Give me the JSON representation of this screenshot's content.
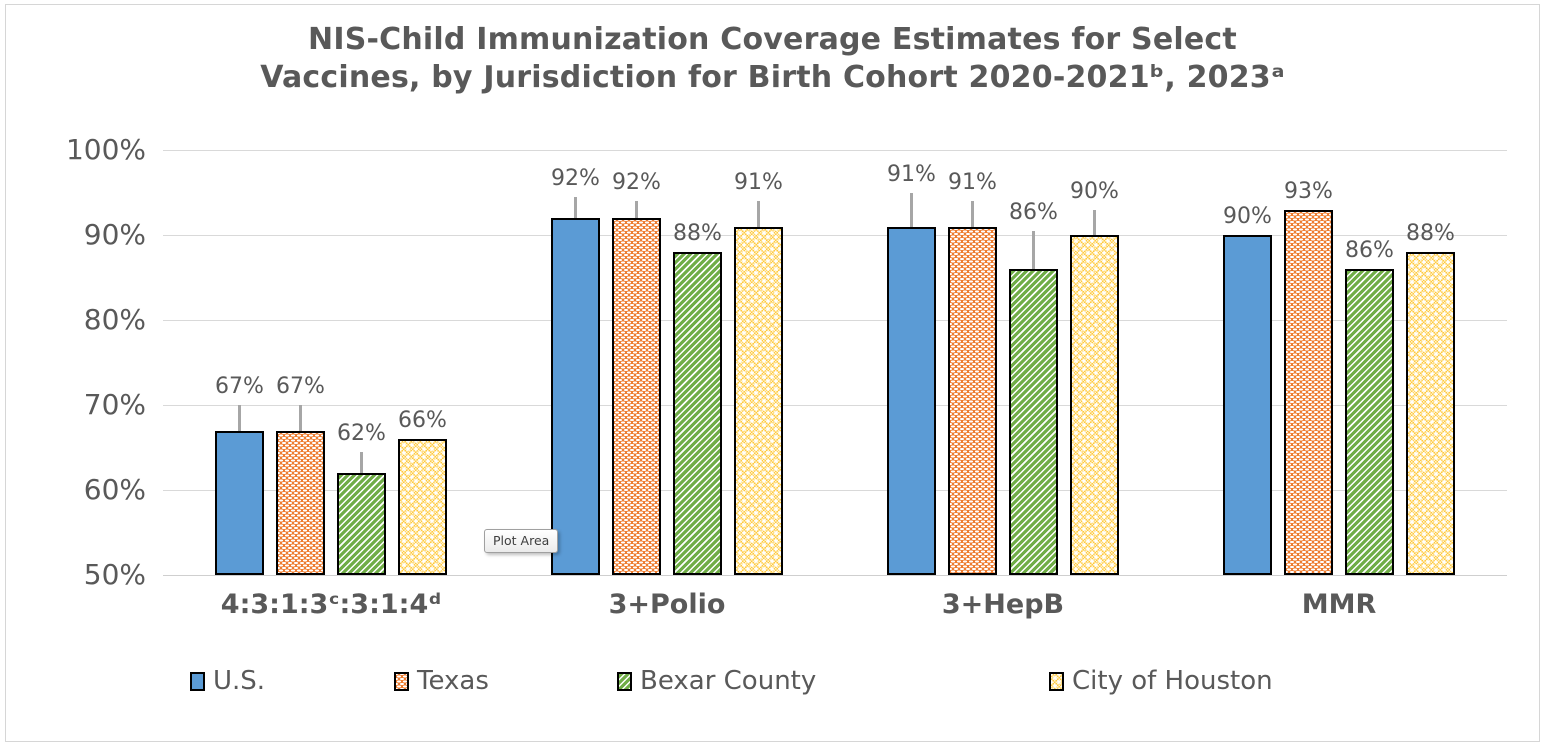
{
  "title": {
    "line1": "NIS-Child Immunization Coverage Estimates for Select",
    "line2": "Vaccines, by Jurisdiction for Birth Cohort 2020-2021ᵇ, 2023ᵃ",
    "color": "#595959"
  },
  "plot_area_tooltip": {
    "label": "Plot Area"
  },
  "chart_data": {
    "type": "bar",
    "title": "NIS-Child Immunization Coverage Estimates for Select Vaccines, by Jurisdiction for Birth Cohort 2020-2021ᵇ, 2023ᵃ",
    "categories": [
      "4:3:1:3ᶜ:3:1:4ᵈ",
      "3+Polio",
      "3+HepB",
      "MMR"
    ],
    "series": [
      {
        "name": "U.S.",
        "color": "#5B9BD5",
        "pattern": "solid-blue",
        "values": [
          67,
          92,
          91,
          90
        ],
        "error_up_pct": [
          3,
          2.5,
          4,
          0
        ]
      },
      {
        "name": "Texas",
        "color": "#ED7D31",
        "pattern": "orange-dashes",
        "values": [
          67,
          92,
          91,
          93
        ],
        "error_up_pct": [
          3,
          2,
          3,
          0
        ]
      },
      {
        "name": "Bexar County",
        "color": "#70AD47",
        "pattern": "green-diagonal",
        "values": [
          62,
          88,
          86,
          86
        ],
        "error_up_pct": [
          2.5,
          0,
          4.5,
          0
        ]
      },
      {
        "name": "City of Houston",
        "color": "#FFC000",
        "pattern": "yellow-dots",
        "values": [
          66,
          91,
          90,
          88
        ],
        "error_up_pct": [
          0,
          3,
          3,
          0
        ]
      }
    ],
    "value_suffix": "%",
    "data_labels": [
      "67%",
      "92%",
      "91%",
      "90%",
      "67%",
      "92%",
      "91%",
      "93%",
      "62%",
      "88%",
      "86%",
      "86%",
      "66%",
      "91%",
      "90%",
      "88%"
    ],
    "xlabel": "",
    "ylabel": "",
    "ylim": [
      50,
      100
    ],
    "ytick_step": 10,
    "ytick_labels": [
      "100%",
      "90%",
      "80%",
      "70%",
      "60%",
      "50%"
    ],
    "grid": true,
    "legend_position": "bottom",
    "error_bars": "upper whiskers on select bars"
  },
  "text_color": "#595959",
  "gridline_color": "#D9D9D9"
}
